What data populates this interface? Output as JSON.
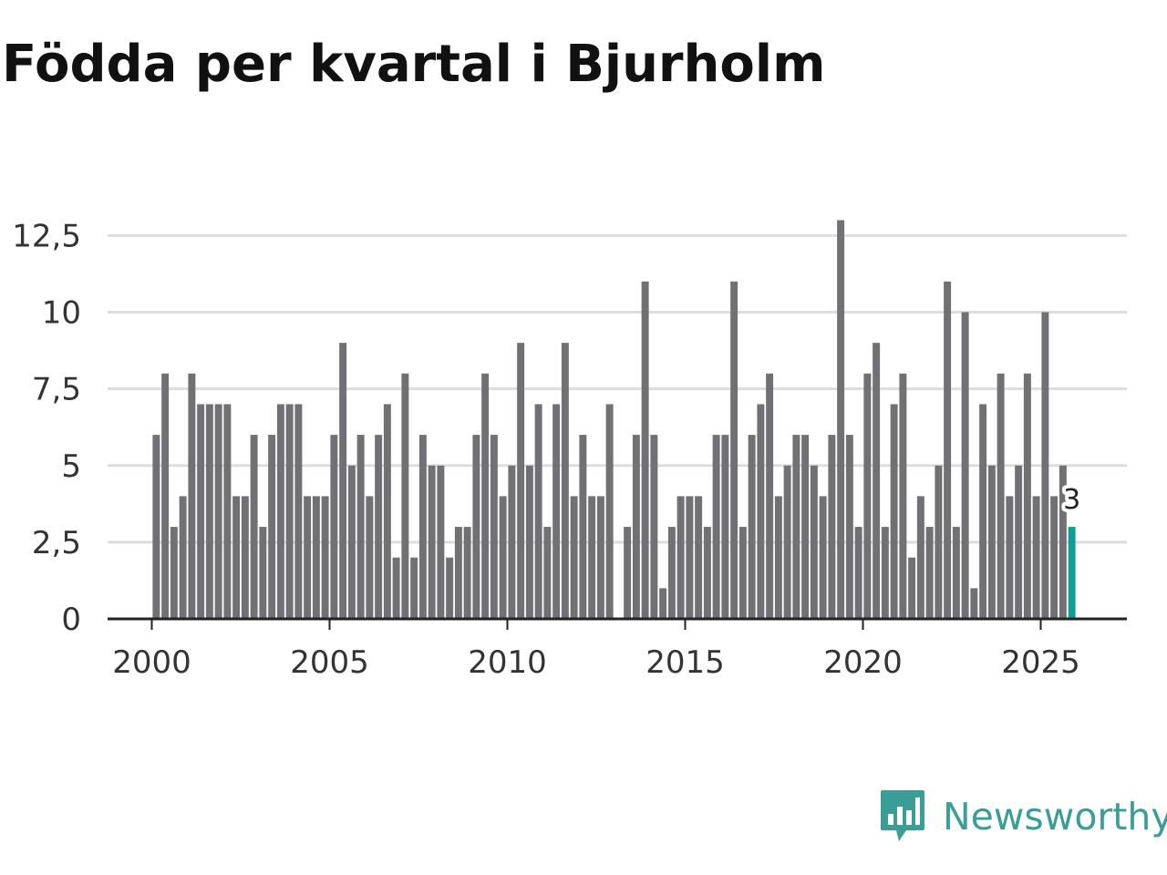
{
  "title": "Födda per kvartal i Bjurholm",
  "brand": {
    "name": "Newsworthy",
    "logo_icon": "chart-badge-icon",
    "color": "#3a9e96"
  },
  "chart_data": {
    "type": "bar",
    "title": "Födda per kvartal i Bjurholm",
    "xlabel": "",
    "ylabel": "",
    "start_year": 2000,
    "periods_per_year": 4,
    "values": [
      6,
      8,
      3,
      4,
      8,
      7,
      7,
      7,
      7,
      4,
      4,
      6,
      3,
      6,
      7,
      7,
      7,
      4,
      4,
      4,
      6,
      9,
      5,
      6,
      4,
      6,
      7,
      2,
      8,
      2,
      6,
      5,
      5,
      2,
      3,
      3,
      6,
      8,
      6,
      4,
      5,
      9,
      5,
      7,
      3,
      7,
      9,
      4,
      6,
      4,
      4,
      7,
      0,
      3,
      6,
      11,
      6,
      1,
      3,
      4,
      4,
      4,
      3,
      6,
      6,
      11,
      3,
      6,
      7,
      8,
      4,
      5,
      6,
      6,
      5,
      4,
      6,
      13,
      6,
      3,
      8,
      9,
      3,
      7,
      8,
      2,
      4,
      3,
      5,
      11,
      3,
      10,
      1,
      7,
      5,
      8,
      4,
      5,
      8,
      4,
      10,
      4,
      5,
      3
    ],
    "highlight_last": true,
    "last_value_label": "3",
    "bar_color": "#707075",
    "highlight_color": "#119e96",
    "yticks": [
      "0",
      "2,5",
      "5",
      "7,5",
      "10",
      "12,5"
    ],
    "ytick_values": [
      0,
      2.5,
      5,
      7.5,
      10,
      12.5
    ],
    "xticks": [
      "2000",
      "2005",
      "2010",
      "2015",
      "2020",
      "2025"
    ],
    "xtick_values": [
      2000,
      2005,
      2010,
      2015,
      2020,
      2025
    ],
    "ylim": [
      0,
      13
    ],
    "grid": true,
    "legend": "none"
  }
}
